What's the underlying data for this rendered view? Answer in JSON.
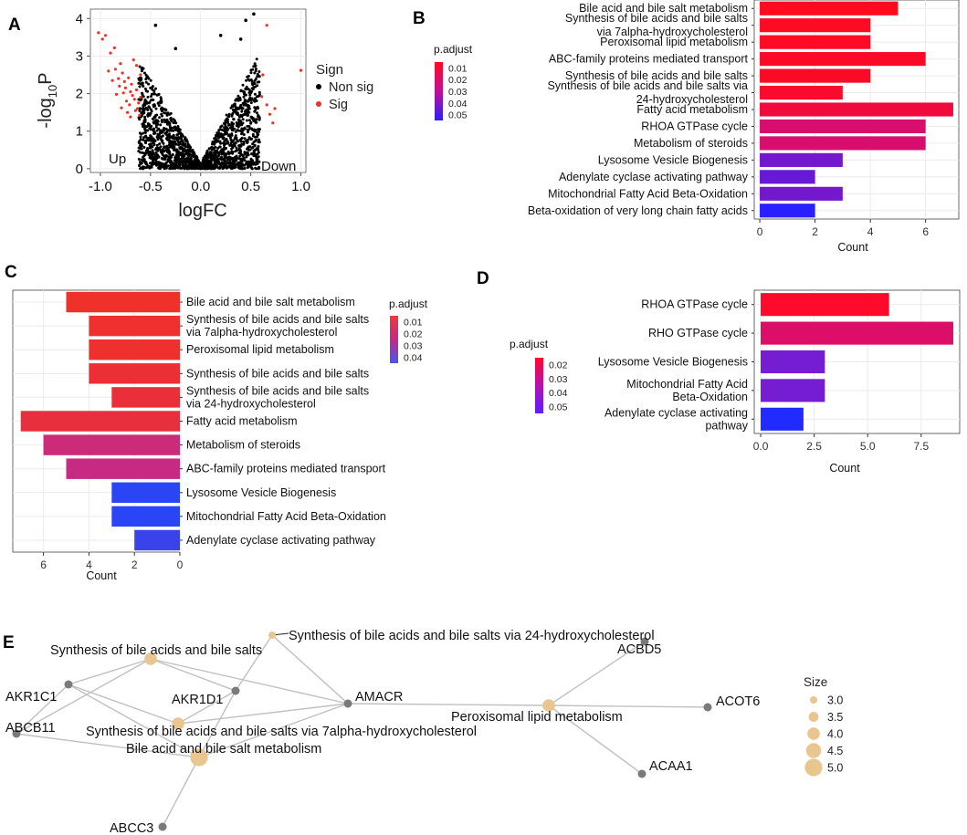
{
  "panels": {
    "A": "A",
    "B": "B",
    "C": "C",
    "D": "D",
    "E": "E"
  },
  "colors": {
    "padj_top": "#ff0000",
    "padj_mid": "#c0109a",
    "padj_bottom": "#1f1fff",
    "sig": "#e8332a",
    "nonsig": "#000000",
    "node_gene": "#7a7a7a",
    "node_pathway": "#e9c58f",
    "edge": "#c0c0c0",
    "grid": "#ebebeb"
  },
  "chart_data": [
    {
      "id": "A",
      "type": "scatter",
      "title": "",
      "xlabel": "logFC",
      "ylabel": "-log10P",
      "ylabel_main": "-log",
      "ylabel_sub": "10",
      "ylabel_tail": "P",
      "xlim": [
        -1.1,
        1.05
      ],
      "ylim": [
        -0.1,
        4.25
      ],
      "xticks": [
        -1.0,
        -0.5,
        0.0,
        0.5,
        1.0
      ],
      "xtick_labels": [
        "-1.0",
        "-0.5",
        "0.0",
        "0.5",
        "1.0"
      ],
      "yticks": [
        0,
        1,
        2,
        3,
        4
      ],
      "ytick_labels": [
        "0",
        "1",
        "2",
        "3",
        "4"
      ],
      "annotations": {
        "up": "Up",
        "down": "Down"
      },
      "legend": {
        "title": "Sign",
        "entries": [
          "Non sig",
          "Sig"
        ]
      },
      "sig_points": [
        [
          -1.02,
          3.62
        ],
        [
          -0.98,
          3.45
        ],
        [
          -0.95,
          3.55
        ],
        [
          -0.9,
          3.08
        ],
        [
          -0.86,
          3.22
        ],
        [
          -0.92,
          2.6
        ],
        [
          -0.85,
          2.65
        ],
        [
          -0.8,
          2.8
        ],
        [
          -0.82,
          2.4
        ],
        [
          -0.78,
          2.55
        ],
        [
          -0.76,
          2.32
        ],
        [
          -0.75,
          2.15
        ],
        [
          -0.72,
          2.42
        ],
        [
          -0.7,
          2.05
        ],
        [
          -0.69,
          2.25
        ],
        [
          -0.68,
          1.95
        ],
        [
          -0.66,
          1.85
        ],
        [
          -0.64,
          2.1
        ],
        [
          -0.62,
          1.75
        ],
        [
          -0.63,
          1.6
        ],
        [
          -0.6,
          1.9
        ],
        [
          -0.71,
          1.7
        ],
        [
          -0.74,
          1.8
        ],
        [
          -0.77,
          2.02
        ],
        [
          -0.81,
          2.2
        ],
        [
          -0.67,
          2.9
        ],
        [
          -0.64,
          2.75
        ],
        [
          -0.6,
          2.5
        ],
        [
          -0.84,
          1.98
        ],
        [
          -0.73,
          1.5
        ],
        [
          -0.88,
          2.35
        ],
        [
          -0.79,
          1.62
        ],
        [
          -0.65,
          1.55
        ],
        [
          -0.61,
          1.42
        ],
        [
          -0.7,
          1.38
        ],
        [
          0.62,
          2.5
        ],
        [
          0.66,
          1.7
        ],
        [
          0.69,
          1.45
        ],
        [
          0.72,
          1.22
        ],
        [
          0.74,
          1.6
        ],
        [
          0.66,
          3.82
        ],
        [
          1.0,
          2.62
        ],
        [
          0.61,
          1.92
        ]
      ],
      "nonsig_points_note": "dense V-shaped cloud of non-significant genes between logFC -0.65 and 0.65"
    },
    {
      "id": "B",
      "type": "bar",
      "orientation": "horizontal",
      "xlabel": "Count",
      "xlim": [
        -0.2,
        7.2
      ],
      "xticks": [
        0,
        2,
        4,
        6
      ],
      "xtick_labels": [
        "0",
        "2",
        "4",
        "6"
      ],
      "legend": {
        "title": "p.adjust",
        "ticks": [
          "0.01",
          "0.02",
          "0.03",
          "0.04",
          "0.05"
        ]
      },
      "categories": [
        [
          "Bile acid and bile salt metabolism"
        ],
        [
          "Synthesis of bile acids and bile salts",
          "via 7alpha-hydroxycholesterol"
        ],
        [
          "Peroxisomal lipid metabolism"
        ],
        [
          "ABC-family proteins mediated transport"
        ],
        [
          "Synthesis of bile acids and bile salts"
        ],
        [
          "Synthesis of bile acids and bile salts via",
          "24-hydroxycholesterol"
        ],
        [
          "Fatty acid metabolism"
        ],
        [
          "RHOA GTPase cycle"
        ],
        [
          "Metabolism of steroids"
        ],
        [
          "Lysosome Vesicle Biogenesis"
        ],
        [
          "Adenylate cyclase activating pathway"
        ],
        [
          "Mitochondrial Fatty Acid Beta-Oxidation"
        ],
        [
          "Beta-oxidation of very long chain fatty acids"
        ]
      ],
      "values": [
        5,
        4,
        4,
        6,
        4,
        3,
        7,
        6,
        6,
        3,
        2,
        3,
        2
      ],
      "p_adjust": [
        0.005,
        0.006,
        0.006,
        0.007,
        0.007,
        0.008,
        0.012,
        0.022,
        0.022,
        0.045,
        0.047,
        0.045,
        0.058
      ]
    },
    {
      "id": "C",
      "type": "bar",
      "orientation": "horizontal-reversed",
      "xlabel": "Count",
      "xlim": [
        0,
        7.35
      ],
      "xticks": [
        6,
        4,
        2,
        0
      ],
      "xtick_labels": [
        "6",
        "4",
        "2",
        "0"
      ],
      "legend": {
        "title": "p.adjust",
        "ticks": [
          "0.01",
          "0.02",
          "0.03",
          "0.04"
        ]
      },
      "categories": [
        [
          "Bile acid and bile salt metabolism"
        ],
        [
          "Synthesis of bile acids and bile salts",
          "via 7alpha-hydroxycholesterol"
        ],
        [
          "Peroxisomal lipid metabolism"
        ],
        [
          "Synthesis of bile acids and bile salts"
        ],
        [
          "Synthesis of bile acids and bile salts",
          "via 24-hydroxycholesterol"
        ],
        [
          "Fatty acid metabolism"
        ],
        [
          "Metabolism of steroids"
        ],
        [
          "ABC-family proteins mediated transport"
        ],
        [
          "Lysosome Vesicle Biogenesis"
        ],
        [
          "Mitochondrial Fatty Acid Beta-Oxidation"
        ],
        [
          "Adenylate cyclase activating pathway"
        ]
      ],
      "values": [
        5,
        4,
        4,
        4,
        3,
        7,
        6,
        5,
        3,
        3,
        2
      ],
      "p_adjust": [
        0.006,
        0.007,
        0.007,
        0.008,
        0.009,
        0.01,
        0.022,
        0.024,
        0.045,
        0.045,
        0.043
      ]
    },
    {
      "id": "D",
      "type": "bar",
      "orientation": "horizontal",
      "xlabel": "Count",
      "xlim": [
        -0.3,
        9.3
      ],
      "xticks": [
        0,
        2.5,
        5,
        7.5
      ],
      "xtick_labels": [
        "0.0",
        "2.5",
        "5.0",
        "7.5"
      ],
      "legend": {
        "title": "p.adjust",
        "ticks": [
          "0.02",
          "0.03",
          "0.04",
          "0.05"
        ]
      },
      "categories": [
        [
          "RHOA GTPase cycle"
        ],
        [
          "RHO GTPase cycle"
        ],
        [
          "Lysosome Vesicle Biogenesis"
        ],
        [
          "Mitochondrial Fatty Acid",
          "Beta-Oxidation"
        ],
        [
          "Adenylate cyclase activating",
          "pathway"
        ]
      ],
      "values": [
        6,
        9,
        3,
        3,
        2
      ],
      "p_adjust": [
        0.02,
        0.028,
        0.045,
        0.045,
        0.055
      ]
    },
    {
      "id": "E",
      "type": "network",
      "legend": {
        "title": "Size",
        "entries": [
          "3.0",
          "3.5",
          "4.0",
          "4.5",
          "5.0"
        ]
      },
      "nodes": [
        {
          "id": "p_syn",
          "label": "Synthesis of bile acids and bile salts",
          "kind": "pathway",
          "size": 4
        },
        {
          "id": "p_24",
          "label": "Synthesis of bile acids and bile salts via 24-hydroxycholesterol",
          "kind": "pathway",
          "size": 3
        },
        {
          "id": "p_7a",
          "label": "Synthesis of bile acids and bile salts via 7alpha-hydroxycholesterol",
          "kind": "pathway",
          "size": 4
        },
        {
          "id": "p_bile",
          "label": "Bile acid and bile salt metabolism",
          "kind": "pathway",
          "size": 5
        },
        {
          "id": "p_perox",
          "label": "Peroxisomal lipid metabolism",
          "kind": "pathway",
          "size": 4
        },
        {
          "id": "g_akr1c1",
          "label": "AKR1C1",
          "kind": "gene"
        },
        {
          "id": "g_abcb11",
          "label": "ABCB11",
          "kind": "gene"
        },
        {
          "id": "g_akr1d1",
          "label": "AKR1D1",
          "kind": "gene"
        },
        {
          "id": "g_amacr",
          "label": "AMACR",
          "kind": "gene"
        },
        {
          "id": "g_abcc3",
          "label": "ABCC3",
          "kind": "gene"
        },
        {
          "id": "g_acbd5",
          "label": "ACBD5",
          "kind": "gene"
        },
        {
          "id": "g_acot6",
          "label": "ACOT6",
          "kind": "gene"
        },
        {
          "id": "g_acaa1",
          "label": "ACAA1",
          "kind": "gene"
        }
      ],
      "edges": [
        [
          "g_akr1c1",
          "p_syn"
        ],
        [
          "g_akr1c1",
          "p_7a"
        ],
        [
          "g_akr1c1",
          "p_bile"
        ],
        [
          "g_akr1c1",
          "g_abcb11"
        ],
        [
          "g_abcb11",
          "p_syn"
        ],
        [
          "g_abcb11",
          "p_bile"
        ],
        [
          "g_akr1d1",
          "p_syn"
        ],
        [
          "g_akr1d1",
          "p_24"
        ],
        [
          "g_akr1d1",
          "p_7a"
        ],
        [
          "g_akr1d1",
          "p_bile"
        ],
        [
          "g_amacr",
          "p_syn"
        ],
        [
          "g_amacr",
          "p_24"
        ],
        [
          "g_amacr",
          "p_7a"
        ],
        [
          "g_amacr",
          "p_bile"
        ],
        [
          "g_amacr",
          "p_perox"
        ],
        [
          "g_abcc3",
          "p_bile"
        ],
        [
          "p_perox",
          "g_acbd5"
        ],
        [
          "p_perox",
          "g_acot6"
        ],
        [
          "p_perox",
          "g_acaa1"
        ]
      ]
    }
  ]
}
